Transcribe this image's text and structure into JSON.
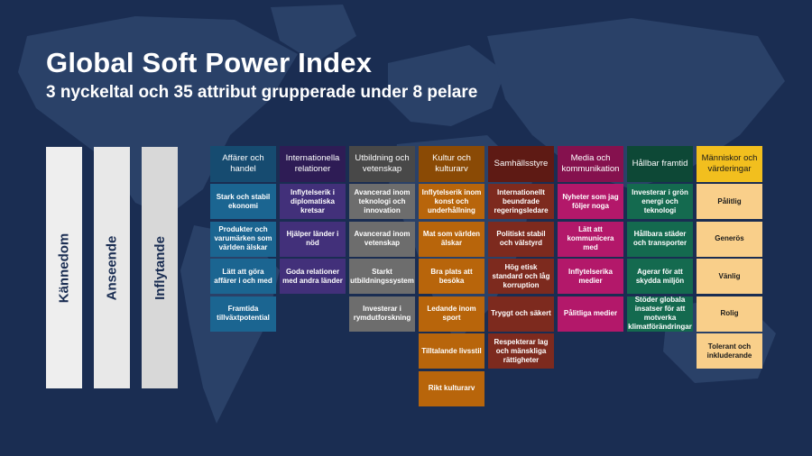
{
  "title": "Global Soft Power Index",
  "subtitle": "3 nyckeltal och 35 attribut grupperade under 8 pelare",
  "metrics": [
    "Kännedom",
    "Anseende",
    "Inflytande"
  ],
  "colors": {
    "background": "#1a2d52",
    "map": "#2a4168",
    "metric_bars": [
      "#eeeeee",
      "#e8e8e8",
      "#d8d8d8"
    ]
  },
  "pillars": [
    {
      "name": "Affärer och handel",
      "head_color": "#164b70",
      "cell_color": "#1b6591",
      "attributes": [
        "Stark och stabil ekonomi",
        "Produkter och varumärken som världen älskar",
        "Lätt att göra affärer i och med",
        "Framtida tillväxtpotential"
      ]
    },
    {
      "name": "Internationella relationer",
      "head_color": "#2e1c55",
      "cell_color": "#42307a",
      "attributes": [
        "Inflytelserik i diplomatiska kretsar",
        "Hjälper länder i nöd",
        "Goda relationer med andra länder"
      ]
    },
    {
      "name": "Utbildning och vetenskap",
      "head_color": "#484848",
      "cell_color": "#6d6d6d",
      "attributes": [
        "Avancerad inom teknologi och innovation",
        "Avancerad inom vetenskap",
        "Starkt utbildningssystem",
        "Investerar i rymdutforskning"
      ]
    },
    {
      "name": "Kultur och kulturarv",
      "head_color": "#8a4a05",
      "cell_color": "#b8650b",
      "attributes": [
        "Inflytelserik inom konst och underhållning",
        "Mat som världen älskar",
        "Bra plats att besöka",
        "Ledande inom sport",
        "Tilltalande livsstil",
        "Rikt kulturarv"
      ]
    },
    {
      "name": "Samhällsstyre",
      "head_color": "#5e1a14",
      "cell_color": "#7d2a1e",
      "attributes": [
        "Internationellt beundrade regeringsledare",
        "Politiskt stabil och välstyrd",
        "Hög etisk standard och låg korruption",
        "Tryggt och säkert",
        "Respekterar lag och mänskliga rättigheter"
      ]
    },
    {
      "name": "Media och kommunikation",
      "head_color": "#85114e",
      "cell_color": "#b3186a",
      "attributes": [
        "Nyheter som jag följer noga",
        "Lätt att kommunicera med",
        "Inflytelserika medier",
        "Pålitliga medier"
      ]
    },
    {
      "name": "Hållbar framtid",
      "head_color": "#0d4836",
      "cell_color": "#146a4f",
      "attributes": [
        "Investerar i grön energi och teknologi",
        "Hållbara städer och transporter",
        "Agerar för att skydda miljön",
        "Stöder globala insatser för att motverka klimatförändringar"
      ]
    },
    {
      "name": "Människor och värderingar",
      "head_color": "#f2bf1e",
      "cell_color": "#f9cf8a",
      "text_color": "#1a1a1a",
      "attributes": [
        "Pålitlig",
        "Generös",
        "Vänlig",
        "Rolig",
        "Tolerant och inkluderande"
      ]
    }
  ]
}
